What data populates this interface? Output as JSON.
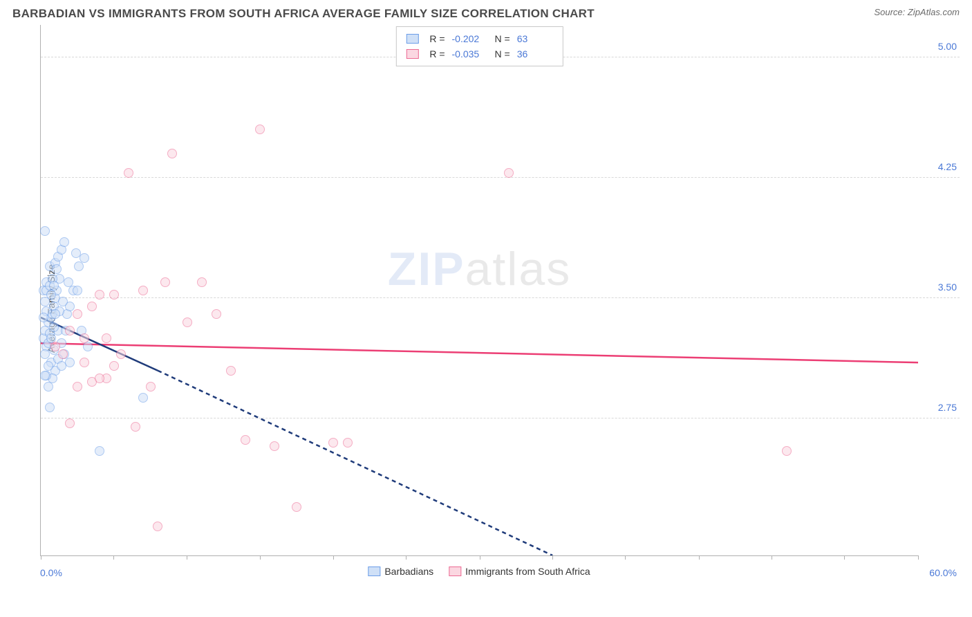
{
  "header": {
    "title": "BARBADIAN VS IMMIGRANTS FROM SOUTH AFRICA AVERAGE FAMILY SIZE CORRELATION CHART",
    "source": "Source: ZipAtlas.com"
  },
  "watermark": {
    "left": "ZIP",
    "right": "atlas"
  },
  "chart": {
    "type": "scatter",
    "ylabel": "Average Family Size",
    "xlim": [
      0,
      60
    ],
    "ylim": [
      1.9,
      5.2
    ],
    "xticks_pct": [
      0,
      8.3,
      16.6,
      25,
      33.3,
      41.6,
      50,
      58.3,
      66.6,
      75,
      83.3,
      91.6,
      100
    ],
    "yticks": [
      {
        "value": 2.75,
        "label": "2.75"
      },
      {
        "value": 3.5,
        "label": "3.50"
      },
      {
        "value": 4.25,
        "label": "4.25"
      },
      {
        "value": 5.0,
        "label": "5.00"
      }
    ],
    "xmin_label": "0.0%",
    "xmax_label": "60.0%",
    "grid_color": "#d8d8d8",
    "axis_color": "#b0b0b0",
    "background": "#ffffff",
    "marker_radius": 7,
    "marker_opacity": 0.55,
    "marker_border_width": 1,
    "trend_line_width": 2.5,
    "series": [
      {
        "name": "Barbadians",
        "color_fill": "#cfe0f7",
        "color_stroke": "#6b9de8",
        "trend_color": "#1f3b7a",
        "R": "-0.202",
        "N": "63",
        "trend_solid": {
          "x1": 0,
          "y1": 3.38,
          "x2": 8,
          "y2": 3.05
        },
        "trend_dash": {
          "x1": 8,
          "y1": 3.05,
          "x2": 35,
          "y2": 1.9
        },
        "points": [
          [
            0.2,
            3.25
          ],
          [
            0.3,
            3.3
          ],
          [
            0.4,
            3.2
          ],
          [
            0.5,
            3.35
          ],
          [
            0.6,
            3.28
          ],
          [
            0.4,
            3.42
          ],
          [
            0.7,
            3.38
          ],
          [
            0.3,
            3.15
          ],
          [
            0.8,
            3.4
          ],
          [
            0.9,
            3.45
          ],
          [
            1.0,
            3.5
          ],
          [
            1.1,
            3.55
          ],
          [
            0.4,
            3.6
          ],
          [
            1.3,
            3.62
          ],
          [
            0.6,
            3.7
          ],
          [
            1.0,
            3.72
          ],
          [
            1.2,
            3.76
          ],
          [
            1.4,
            3.8
          ],
          [
            1.6,
            3.85
          ],
          [
            0.3,
            3.92
          ],
          [
            0.5,
            3.22
          ],
          [
            0.7,
            3.1
          ],
          [
            0.9,
            3.18
          ],
          [
            1.2,
            3.3
          ],
          [
            1.4,
            3.22
          ],
          [
            1.6,
            3.15
          ],
          [
            1.8,
            3.4
          ],
          [
            2.0,
            3.45
          ],
          [
            2.2,
            3.55
          ],
          [
            2.4,
            3.78
          ],
          [
            2.6,
            3.7
          ],
          [
            2.8,
            3.3
          ],
          [
            3.0,
            3.75
          ],
          [
            3.2,
            3.2
          ],
          [
            0.6,
            2.82
          ],
          [
            4.0,
            2.55
          ],
          [
            7.0,
            2.88
          ],
          [
            2.0,
            3.1
          ],
          [
            2.5,
            3.55
          ],
          [
            1.0,
            3.05
          ],
          [
            0.8,
            3.0
          ],
          [
            0.2,
            3.55
          ],
          [
            0.3,
            3.48
          ],
          [
            1.5,
            3.48
          ],
          [
            0.4,
            3.55
          ],
          [
            0.6,
            3.58
          ],
          [
            0.7,
            3.52
          ],
          [
            0.8,
            3.62
          ],
          [
            0.9,
            3.58
          ],
          [
            1.1,
            3.68
          ],
          [
            1.3,
            3.42
          ],
          [
            0.5,
            3.08
          ],
          [
            0.7,
            3.25
          ],
          [
            0.9,
            3.32
          ],
          [
            1.0,
            3.4
          ],
          [
            1.2,
            3.12
          ],
          [
            1.4,
            3.08
          ],
          [
            0.4,
            3.02
          ],
          [
            0.5,
            2.95
          ],
          [
            0.3,
            3.02
          ],
          [
            1.7,
            3.3
          ],
          [
            1.9,
            3.6
          ],
          [
            0.2,
            3.38
          ]
        ]
      },
      {
        "name": "Immigrants from South Africa",
        "color_fill": "#fbd7e1",
        "color_stroke": "#ec6a93",
        "trend_color": "#ec3e74",
        "R": "-0.035",
        "N": "36",
        "trend_solid": {
          "x1": 0,
          "y1": 3.22,
          "x2": 60,
          "y2": 3.1
        },
        "points": [
          [
            1.0,
            3.2
          ],
          [
            1.5,
            3.15
          ],
          [
            2.0,
            3.3
          ],
          [
            2.5,
            3.4
          ],
          [
            3.0,
            3.1
          ],
          [
            3.5,
            3.45
          ],
          [
            4.0,
            3.52
          ],
          [
            4.5,
            3.0
          ],
          [
            5.0,
            3.52
          ],
          [
            5.5,
            3.15
          ],
          [
            6.0,
            4.28
          ],
          [
            6.5,
            2.7
          ],
          [
            7.0,
            3.55
          ],
          [
            7.5,
            2.95
          ],
          [
            8.0,
            2.08
          ],
          [
            8.5,
            3.6
          ],
          [
            9.0,
            4.4
          ],
          [
            10.0,
            3.35
          ],
          [
            11.0,
            3.6
          ],
          [
            12.0,
            3.4
          ],
          [
            13.0,
            3.05
          ],
          [
            14.0,
            2.62
          ],
          [
            15.0,
            4.55
          ],
          [
            16.0,
            2.58
          ],
          [
            17.5,
            2.2
          ],
          [
            20.0,
            2.6
          ],
          [
            21.0,
            2.6
          ],
          [
            32.0,
            4.28
          ],
          [
            51.0,
            2.55
          ],
          [
            2.0,
            2.72
          ],
          [
            2.5,
            2.95
          ],
          [
            3.0,
            3.25
          ],
          [
            3.5,
            2.98
          ],
          [
            4.0,
            3.0
          ],
          [
            4.5,
            3.25
          ],
          [
            5.0,
            3.08
          ]
        ]
      }
    ],
    "bottom_legend": [
      {
        "label": "Barbadians",
        "fill": "#cfe0f7",
        "stroke": "#6b9de8"
      },
      {
        "label": "Immigrants from South Africa",
        "fill": "#fbd7e1",
        "stroke": "#ec6a93"
      }
    ]
  }
}
